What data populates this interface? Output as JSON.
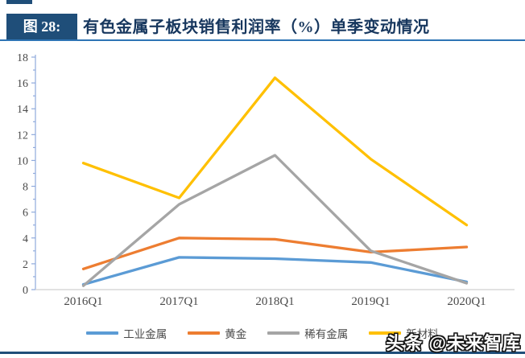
{
  "page": {
    "figure_label": "图 28:",
    "title": "有色金属子板块销售利润率（%）单季变动情况",
    "watermark": "头条 @未来智库"
  },
  "chart_data": {
    "type": "line",
    "title": "有色金属子板块销售利润率（%）单季变动情况",
    "categories": [
      "2016Q1",
      "2017Q1",
      "2018Q1",
      "2019Q1",
      "2020Q1"
    ],
    "series": [
      {
        "name": "工业金属",
        "color": "#5B9BD5",
        "values": [
          0.4,
          2.5,
          2.4,
          2.1,
          0.6
        ]
      },
      {
        "name": "黄金",
        "color": "#ED7D31",
        "values": [
          1.6,
          4.0,
          3.9,
          2.9,
          3.3
        ]
      },
      {
        "name": "稀有金属",
        "color": "#A5A5A5",
        "values": [
          0.3,
          6.6,
          10.4,
          3.0,
          0.5
        ]
      },
      {
        "name": "新材料",
        "color": "#FFC000",
        "values": [
          9.8,
          7.1,
          16.4,
          10.1,
          5.0
        ]
      }
    ],
    "ylim": [
      0,
      18
    ],
    "ytick_step": 2,
    "yticks": [
      0,
      2,
      4,
      6,
      8,
      10,
      12,
      14,
      16,
      18
    ],
    "xlabel": "",
    "ylabel": "",
    "grid": false,
    "legend_position": "bottom",
    "axis_color": "#8FAADC",
    "baseline_color": "#D9D9D9",
    "tick_label_color": "#4a4a4a"
  },
  "theme": {
    "header_badge_bg": "#1F4E79",
    "header_badge_text": "#FFFFFF",
    "title_color": "#17375E",
    "rule_color": "#2E74B5",
    "bottom_bar_color": "#1F4E79"
  }
}
